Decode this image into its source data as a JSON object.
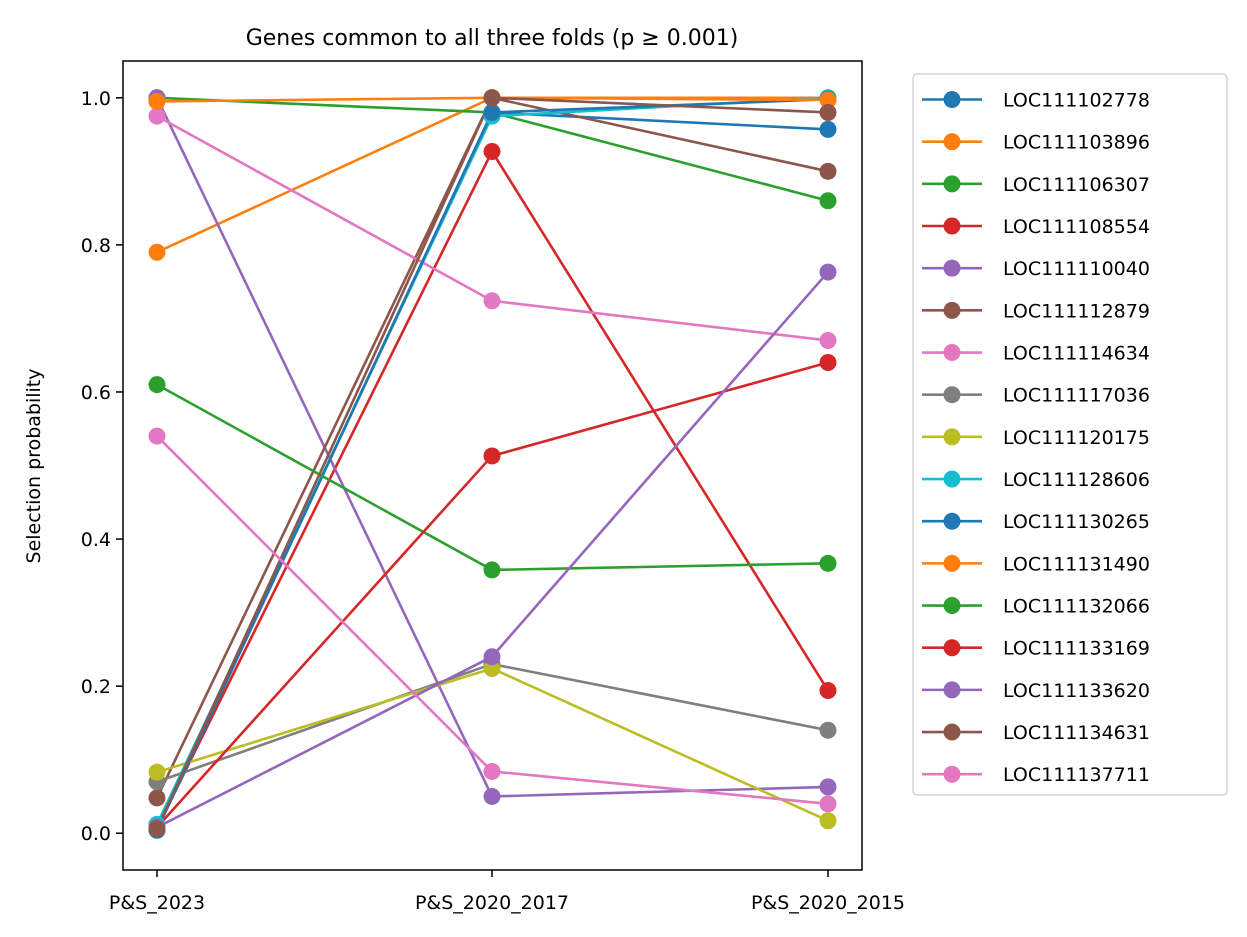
{
  "chart_data": {
    "type": "line",
    "title": "Genes common to all three folds (p ≥ 0.001)",
    "xlabel": "",
    "ylabel": "Selection probability",
    "categories": [
      "P&S_2023",
      "P&S_2020_2017",
      "P&S_2020_2015"
    ],
    "ylim": [
      -0.05,
      1.05
    ],
    "yticks": [
      "0.0",
      "0.2",
      "0.4",
      "0.6",
      "0.8",
      "1.0"
    ],
    "grid": false,
    "legend_position": "outside-right",
    "series": [
      {
        "name": "LOC111102778",
        "color": "#1f77b4",
        "values": [
          0.005,
          0.98,
          0.957
        ]
      },
      {
        "name": "LOC111103896",
        "color": "#ff7f0e",
        "values": [
          0.79,
          1.0,
          1.0
        ]
      },
      {
        "name": "LOC111106307",
        "color": "#2ca02c",
        "values": [
          1.0,
          0.98,
          0.86
        ]
      },
      {
        "name": "LOC111108554",
        "color": "#d62728",
        "values": [
          0.007,
          0.927,
          0.194
        ]
      },
      {
        "name": "LOC111110040",
        "color": "#9467bd",
        "values": [
          1.0,
          0.05,
          0.063
        ]
      },
      {
        "name": "LOC111112879",
        "color": "#8c564b",
        "values": [
          0.048,
          1.0,
          0.9
        ]
      },
      {
        "name": "LOC111114634",
        "color": "#e377c2",
        "values": [
          0.975,
          0.724,
          0.67
        ]
      },
      {
        "name": "LOC111117036",
        "color": "#7f7f7f",
        "values": [
          0.07,
          0.23,
          0.14
        ]
      },
      {
        "name": "LOC111120175",
        "color": "#bcbd22",
        "values": [
          0.083,
          0.224,
          0.017
        ]
      },
      {
        "name": "LOC111128606",
        "color": "#17becf",
        "values": [
          0.012,
          0.975,
          1.0
        ]
      },
      {
        "name": "LOC111130265",
        "color": "#1f77b4",
        "values": [
          0.004,
          0.98,
          0.998
        ]
      },
      {
        "name": "LOC111131490",
        "color": "#ff7f0e",
        "values": [
          0.995,
          1.0,
          0.997
        ]
      },
      {
        "name": "LOC111132066",
        "color": "#2ca02c",
        "values": [
          0.61,
          0.358,
          0.367
        ]
      },
      {
        "name": "LOC111133169",
        "color": "#d62728",
        "values": [
          0.008,
          0.513,
          0.64
        ]
      },
      {
        "name": "LOC111133620",
        "color": "#9467bd",
        "values": [
          0.008,
          0.24,
          0.763
        ]
      },
      {
        "name": "LOC111134631",
        "color": "#8c564b",
        "values": [
          0.006,
          1.0,
          0.98
        ]
      },
      {
        "name": "LOC111137711",
        "color": "#e377c2",
        "values": [
          0.54,
          0.084,
          0.04
        ]
      }
    ]
  }
}
